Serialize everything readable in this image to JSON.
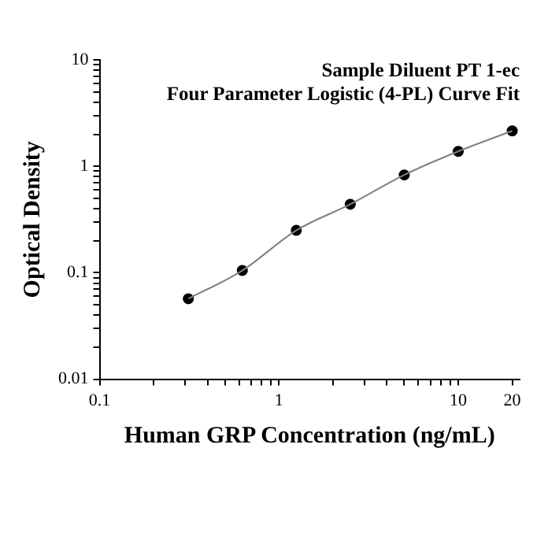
{
  "chart_data": {
    "type": "scatter",
    "title": "Sample Diluent PT 1-ec\nFour Parameter Logistic (4-PL) Curve Fit",
    "xlabel": "Human GRP Concentration (ng/mL)",
    "ylabel": "Optical Density",
    "log": "xy",
    "grid": false,
    "legend": false,
    "line_style": "solid",
    "xlim": [
      0.1,
      22
    ],
    "ylim": [
      0.01,
      10
    ],
    "xticks": [
      0.1,
      {
        "value": 0.2,
        "label": null
      },
      {
        "value": 0.3,
        "label": null
      },
      {
        "value": 0.4,
        "label": null
      },
      {
        "value": 0.5,
        "label": null
      },
      {
        "value": 0.6,
        "label": null
      },
      {
        "value": 0.7,
        "label": null
      },
      {
        "value": 0.8,
        "label": null
      },
      {
        "value": 0.9,
        "label": null
      },
      1,
      {
        "value": 2,
        "label": null
      },
      {
        "value": 3,
        "label": null
      },
      {
        "value": 4,
        "label": null
      },
      {
        "value": 5,
        "label": null
      },
      {
        "value": 6,
        "label": null
      },
      {
        "value": 7,
        "label": null
      },
      {
        "value": 8,
        "label": null
      },
      {
        "value": 9,
        "label": null
      },
      10,
      20
    ],
    "yticks": [
      0.01,
      {
        "value": 0.02,
        "label": null
      },
      {
        "value": 0.03,
        "label": null
      },
      {
        "value": 0.04,
        "label": null
      },
      {
        "value": 0.05,
        "label": null
      },
      {
        "value": 0.06,
        "label": null
      },
      {
        "value": 0.07,
        "label": null
      },
      {
        "value": 0.08,
        "label": null
      },
      {
        "value": 0.09,
        "label": null
      },
      0.1,
      {
        "value": 0.2,
        "label": null
      },
      {
        "value": 0.3,
        "label": null
      },
      {
        "value": 0.4,
        "label": null
      },
      {
        "value": 0.5,
        "label": null
      },
      {
        "value": 0.6,
        "label": null
      },
      {
        "value": 0.7,
        "label": null
      },
      {
        "value": 0.8,
        "label": null
      },
      {
        "value": 0.9,
        "label": null
      },
      1,
      {
        "value": 2,
        "label": null
      },
      {
        "value": 3,
        "label": null
      },
      {
        "value": 4,
        "label": null
      },
      {
        "value": 5,
        "label": null
      },
      {
        "value": 6,
        "label": null
      },
      {
        "value": 7,
        "label": null
      },
      {
        "value": 8,
        "label": null
      },
      {
        "value": 9,
        "label": null
      },
      10
    ],
    "series": [
      {
        "type": "line",
        "marker": "none",
        "color": "#808080",
        "x": [
          0.3125,
          0.625,
          1.25,
          2.5,
          5,
          10,
          20
        ],
        "values": [
          0.057,
          0.105,
          0.25,
          0.44,
          0.83,
          1.38,
          2.15
        ]
      },
      {
        "type": "scatter",
        "marker": "circle",
        "color": "#000000",
        "x": [
          0.3125,
          0.625,
          1.25,
          2.5,
          5,
          10,
          20
        ],
        "values": [
          0.057,
          0.105,
          0.25,
          0.44,
          0.83,
          1.38,
          2.15
        ]
      }
    ]
  }
}
